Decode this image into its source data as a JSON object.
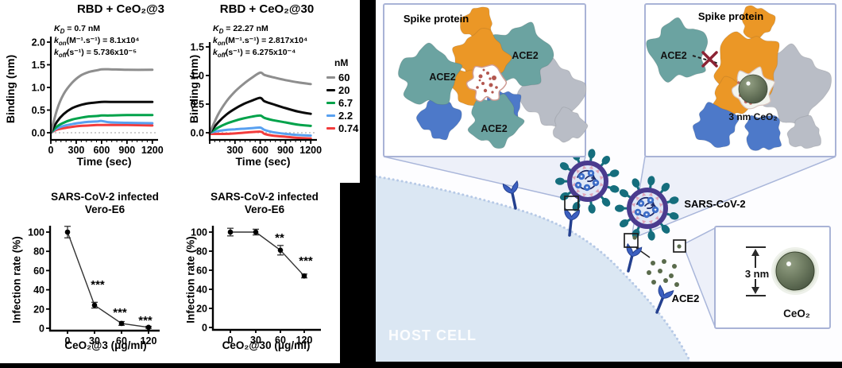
{
  "figure": {
    "background": "#000000",
    "panel_bg": "#ffffff"
  },
  "chart_data": [
    {
      "type": "line",
      "id": "bli-ceo2-3",
      "title": "RBD + CeO₂@3",
      "kinetics": [
        {
          "sym": "K",
          "sub": "D",
          "rest": " = 0.7 nM"
        },
        {
          "sym": "k",
          "sub": "on",
          "rest": "(M⁻¹.s⁻¹) = 8.1x10⁴"
        },
        {
          "sym": "k",
          "sub": "off",
          "rest": "(s⁻¹) = 5.736x10⁻⁵"
        }
      ],
      "xlabel": "Time (sec)",
      "ylabel": "Binding (nm)",
      "xticks": [
        0,
        300,
        600,
        900,
        1200
      ],
      "yticks": [
        "0.0",
        "0.5",
        "1.0",
        "1.5",
        "2.0"
      ],
      "xlim": [
        0,
        1260
      ],
      "ylim": [
        -0.25,
        2.05
      ],
      "series": [
        {
          "name": "60",
          "color": "#8e8e8e",
          "points": [
            [
              0,
              0
            ],
            [
              75,
              0.52
            ],
            [
              150,
              0.85
            ],
            [
              250,
              1.1
            ],
            [
              350,
              1.26
            ],
            [
              450,
              1.34
            ],
            [
              550,
              1.38
            ],
            [
              600,
              1.4
            ],
            [
              700,
              1.4
            ],
            [
              900,
              1.39
            ],
            [
              1200,
              1.39
            ]
          ]
        },
        {
          "name": "20",
          "color": "#0a0a0a",
          "points": [
            [
              0,
              0
            ],
            [
              75,
              0.25
            ],
            [
              150,
              0.41
            ],
            [
              250,
              0.54
            ],
            [
              350,
              0.61
            ],
            [
              450,
              0.65
            ],
            [
              550,
              0.67
            ],
            [
              600,
              0.68
            ],
            [
              700,
              0.68
            ],
            [
              900,
              0.68
            ],
            [
              1200,
              0.68
            ]
          ]
        },
        {
          "name": "6.7",
          "color": "#00a24a",
          "points": [
            [
              0,
              0
            ],
            [
              75,
              0.14
            ],
            [
              150,
              0.22
            ],
            [
              250,
              0.29
            ],
            [
              350,
              0.33
            ],
            [
              450,
              0.36
            ],
            [
              550,
              0.37
            ],
            [
              600,
              0.38
            ],
            [
              700,
              0.38
            ],
            [
              900,
              0.39
            ],
            [
              1200,
              0.39
            ]
          ]
        },
        {
          "name": "2.2",
          "color": "#58a0f0",
          "points": [
            [
              0,
              0
            ],
            [
              75,
              0.1
            ],
            [
              150,
              0.15
            ],
            [
              250,
              0.19
            ],
            [
              350,
              0.22
            ],
            [
              450,
              0.24
            ],
            [
              550,
              0.25
            ],
            [
              600,
              0.26
            ],
            [
              700,
              0.23
            ],
            [
              900,
              0.22
            ],
            [
              1200,
              0.21
            ]
          ]
        },
        {
          "name": "0.74",
          "color": "#f23c3c",
          "points": [
            [
              0,
              0
            ],
            [
              75,
              0.07
            ],
            [
              150,
              0.1
            ],
            [
              250,
              0.13
            ],
            [
              350,
              0.15
            ],
            [
              450,
              0.16
            ],
            [
              550,
              0.17
            ],
            [
              600,
              0.17
            ],
            [
              700,
              0.17
            ],
            [
              900,
              0.17
            ],
            [
              1200,
              0.16
            ]
          ]
        }
      ]
    },
    {
      "type": "line",
      "id": "bli-ceo2-30",
      "title": "RBD + CeO₂@30",
      "kinetics": [
        {
          "sym": "K",
          "sub": "D",
          "rest": " = 22.27 nM"
        },
        {
          "sym": "k",
          "sub": "on",
          "rest": "(M⁻¹.s⁻¹) = 2.817x10⁴"
        },
        {
          "sym": "k",
          "sub": "off",
          "rest": "(s⁻¹) = 6.275x10⁻⁴"
        }
      ],
      "xlabel": "Time (sec)",
      "ylabel": "Binding (nm)",
      "xticks": [
        300,
        600,
        900,
        1200
      ],
      "yticks": [
        "0.0",
        "0.5",
        "1.0",
        "1.5"
      ],
      "xlim": [
        0,
        1260
      ],
      "ylim": [
        -0.15,
        1.5
      ],
      "series": [
        {
          "name": "60",
          "color": "#8e8e8e",
          "points": [
            [
              0,
              0
            ],
            [
              100,
              0.32
            ],
            [
              200,
              0.55
            ],
            [
              300,
              0.72
            ],
            [
              400,
              0.85
            ],
            [
              500,
              0.96
            ],
            [
              600,
              1.05
            ],
            [
              650,
              1.01
            ],
            [
              750,
              0.97
            ],
            [
              900,
              0.92
            ],
            [
              1050,
              0.88
            ],
            [
              1200,
              0.85
            ]
          ]
        },
        {
          "name": "20",
          "color": "#0a0a0a",
          "points": [
            [
              0,
              0
            ],
            [
              100,
              0.18
            ],
            [
              200,
              0.32
            ],
            [
              300,
              0.42
            ],
            [
              400,
              0.5
            ],
            [
              500,
              0.56
            ],
            [
              600,
              0.61
            ],
            [
              650,
              0.55
            ],
            [
              750,
              0.5
            ],
            [
              900,
              0.43
            ],
            [
              1050,
              0.37
            ],
            [
              1200,
              0.33
            ]
          ]
        },
        {
          "name": "6.7",
          "color": "#00a24a",
          "points": [
            [
              0,
              0
            ],
            [
              100,
              0.09
            ],
            [
              200,
              0.16
            ],
            [
              300,
              0.21
            ],
            [
              400,
              0.25
            ],
            [
              500,
              0.28
            ],
            [
              600,
              0.3
            ],
            [
              650,
              0.26
            ],
            [
              750,
              0.22
            ],
            [
              900,
              0.18
            ],
            [
              1050,
              0.14
            ],
            [
              1200,
              0.12
            ]
          ]
        },
        {
          "name": "2.2",
          "color": "#58a0f0",
          "points": [
            [
              0,
              0
            ],
            [
              100,
              0.03
            ],
            [
              200,
              0.05
            ],
            [
              300,
              0.06
            ],
            [
              400,
              0.07
            ],
            [
              500,
              0.08
            ],
            [
              600,
              0.09
            ],
            [
              650,
              0.05
            ],
            [
              750,
              0.01
            ],
            [
              900,
              -0.02
            ],
            [
              1050,
              -0.04
            ],
            [
              1200,
              -0.05
            ]
          ]
        },
        {
          "name": "0.74",
          "color": "#f23c3c",
          "points": [
            [
              0,
              -0.02
            ],
            [
              200,
              -0.02
            ],
            [
              400,
              0.0
            ],
            [
              600,
              0.02
            ],
            [
              650,
              -0.02
            ],
            [
              750,
              -0.05
            ],
            [
              900,
              -0.07
            ],
            [
              1050,
              -0.09
            ],
            [
              1200,
              -0.1
            ]
          ]
        }
      ]
    },
    {
      "type": "scatter",
      "id": "infection-ceo2-3",
      "title_line1": "SARS-CoV-2 infected",
      "title_line2": "Vero-E6",
      "xlabel": "CeO₂@3 (μg/ml)",
      "ylabel": "Infection rate (%)",
      "categories": [
        "0",
        "30",
        "60",
        "120"
      ],
      "values": [
        100,
        24,
        5,
        1
      ],
      "errors": [
        6,
        3,
        2,
        1
      ],
      "significance": [
        "",
        "***",
        "***",
        "***"
      ],
      "yticks": [
        0,
        20,
        40,
        60,
        80,
        100
      ],
      "ylim": [
        0,
        110
      ]
    },
    {
      "type": "scatter",
      "id": "infection-ceo2-30",
      "title_line1": "SARS-CoV-2 infected",
      "title_line2": "Vero-E6",
      "xlabel": "CeO₂@30 (μg/ml)",
      "ylabel": "Infection rate (%)",
      "categories": [
        "0",
        "30",
        "60",
        "120"
      ],
      "values": [
        100,
        100,
        81,
        54
      ],
      "errors": [
        4,
        3,
        5,
        2
      ],
      "significance": [
        "",
        "",
        "**",
        "***"
      ],
      "yticks": [
        0,
        20,
        40,
        60,
        80,
        100
      ],
      "ylim": [
        0,
        110
      ]
    }
  ],
  "legend": {
    "header": "nM",
    "entries": [
      {
        "label": "60",
        "color": "#8e8e8e"
      },
      {
        "label": "20",
        "color": "#0a0a0a"
      },
      {
        "label": "6.7",
        "color": "#00a24a"
      },
      {
        "label": "2.2",
        "color": "#58a0f0"
      },
      {
        "label": "0.74",
        "color": "#f23c3c"
      }
    ]
  },
  "diagram": {
    "inset_spike_trimer": {
      "title": "Spike protein",
      "ace2_labels": [
        "ACE2",
        "ACE2",
        "ACE2"
      ]
    },
    "inset_blocked": {
      "title": "Spike protein",
      "ace2_label": "ACE2",
      "particle_label": "3 nm CeO₂"
    },
    "inset_particle": {
      "size_label": "3 nm",
      "name_label": "CeO₂"
    },
    "virus_label": "SARS-CoV-2",
    "receptor_label": "ACE2",
    "host_cell_label": "HOST CELL",
    "colors": {
      "spike_orange": "#eb9726",
      "ace2_teal": "#6ba3a1",
      "other_protomer_gray": "#b9bdc6",
      "protomer_blue": "#4d79c9",
      "blocked_x": "#8c2334",
      "ceo2_olive": "#6d7a60",
      "membrane_dots": "#b6c9e6",
      "cell_fill": "#dbe7f3",
      "receptor_blue": "#3b5fc0",
      "virus_envelope_purple": "#4a3b8e",
      "virus_spike_teal": "#156e7d"
    }
  }
}
